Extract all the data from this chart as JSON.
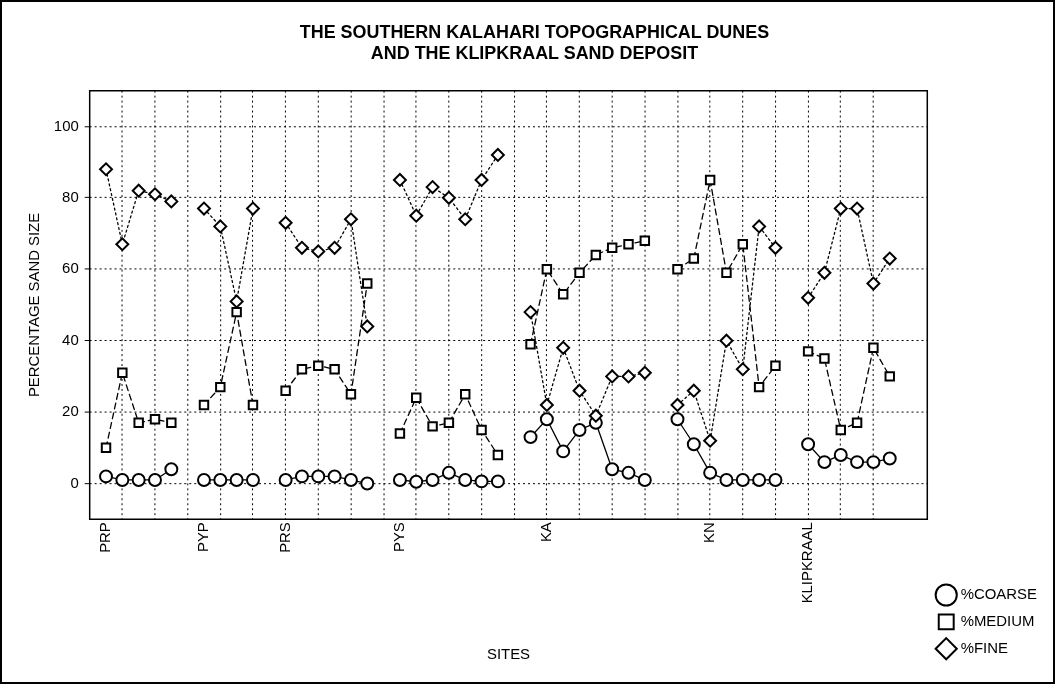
{
  "chart_data": {
    "type": "line",
    "title": "THE SOUTHERN KALAHARI TOPOGRAPHICAL DUNES\nAND THE KLIPKRAAL SAND DEPOSIT",
    "xlabel": "SITES",
    "ylabel": "PERCENTAGE SAND SIZE",
    "categories": [
      "PRP",
      null,
      null,
      null,
      null,
      null,
      "PYP",
      null,
      null,
      null,
      null,
      "PRS",
      null,
      null,
      null,
      null,
      null,
      null,
      "PYS",
      null,
      null,
      null,
      null,
      null,
      null,
      null,
      null,
      "KA",
      null,
      null,
      null,
      null,
      null,
      null,
      null,
      null,
      null,
      "KN",
      null,
      null,
      null,
      null,
      null,
      "KLIPKRAAL",
      null,
      null,
      null,
      null,
      null
    ],
    "series": [
      {
        "name": "%COARSE",
        "color": "#000000",
        "marker": "circle",
        "line_style": "solid",
        "values": [
          2,
          1,
          1,
          1,
          4,
          null,
          1,
          1,
          1,
          1,
          null,
          1,
          2,
          2,
          2,
          1,
          0,
          null,
          1,
          0.5,
          1,
          3,
          1,
          0.6,
          0.6,
          null,
          13,
          18,
          9,
          15,
          17,
          4,
          3,
          1,
          null,
          18,
          11,
          3,
          1,
          1,
          1,
          1,
          null,
          11,
          6,
          8,
          6,
          6,
          7
        ]
      },
      {
        "name": "%MEDIUM",
        "color": "#000000",
        "marker": "square",
        "line_style": "dashed",
        "values": [
          10,
          31,
          17,
          18,
          17,
          null,
          22,
          27,
          48,
          22,
          null,
          26,
          32,
          33,
          32,
          25,
          56,
          null,
          14,
          24,
          16,
          17,
          25,
          15,
          8,
          null,
          39,
          60,
          53,
          59,
          64,
          66,
          67,
          68,
          null,
          60,
          63,
          85,
          59,
          67,
          27,
          33,
          null,
          37,
          35,
          15,
          17,
          38,
          30
        ]
      },
      {
        "name": "%FINE",
        "color": "#000000",
        "marker": "diamond",
        "line_style": "dotted",
        "values": [
          88,
          67,
          82,
          81,
          79,
          null,
          77,
          72,
          51,
          77,
          null,
          73,
          66,
          65,
          66,
          74,
          44,
          null,
          85,
          75,
          83,
          80,
          74,
          85,
          92,
          null,
          48,
          22,
          38,
          26,
          19,
          30,
          30,
          31,
          null,
          22,
          26,
          12,
          40,
          32,
          72,
          66,
          null,
          52,
          59,
          77,
          77,
          56,
          63
        ]
      }
    ],
    "ylim": [
      -10,
      110
    ],
    "yticks": [
      0,
      20,
      40,
      60,
      80,
      100
    ],
    "grid": true,
    "legend": "bottom right"
  }
}
